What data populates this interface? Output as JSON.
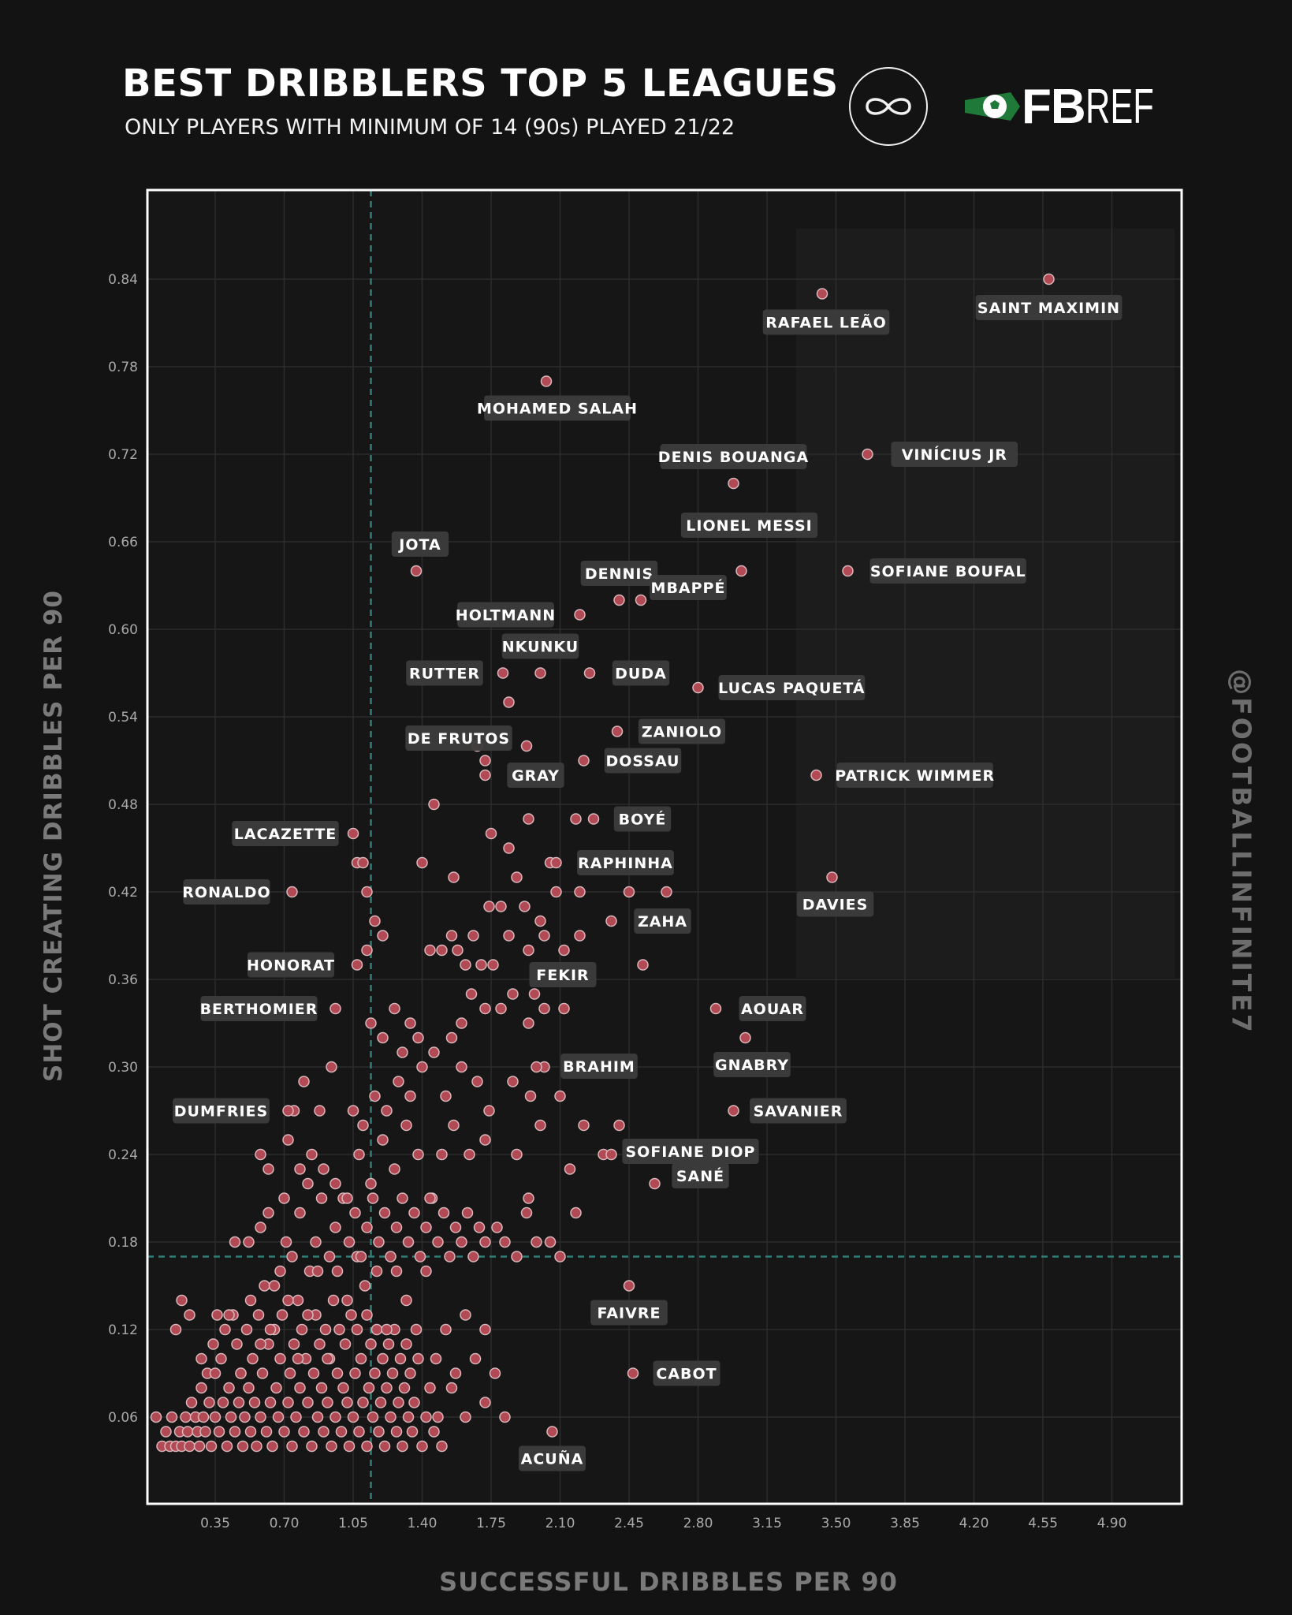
{
  "header": {
    "title": "BEST DRIBBLERS TOP 5 LEAGUES",
    "subtitle": "ONLY PLAYERS WITH MINIMUM OF 14 (90s) PLAYED 21/22",
    "brand_fb": "FB",
    "brand_ref": "REF",
    "handle": "@FOOTBALLINFINITE7"
  },
  "colors": {
    "background": "#131313",
    "plot_bg": "#161616",
    "grid": "#2c2c2c",
    "frame": "#ffffff",
    "avg_line": "#2f7f78",
    "point_fill": "#b24a55",
    "point_stroke": "#d9b7bb",
    "label_bg": "#3c3c3c",
    "fbref_green": "#1f7a3a"
  },
  "chart_data": {
    "type": "scatter",
    "xlabel": "SUCCESSFUL DRIBBLES PER 90",
    "ylabel": "SHOT CREATING DRIBBLES PER 90",
    "xlim": [
      0,
      5.25
    ],
    "ylim": [
      0,
      0.9
    ],
    "xticks": [
      "0.35",
      "0.70",
      "1.05",
      "1.40",
      "1.75",
      "2.10",
      "2.45",
      "2.80",
      "3.15",
      "3.50",
      "3.85",
      "4.20",
      "4.55",
      "4.90"
    ],
    "yticks": [
      "0.06",
      "0.12",
      "0.18",
      "0.24",
      "0.30",
      "0.36",
      "0.42",
      "0.48",
      "0.54",
      "0.60",
      "0.66",
      "0.72",
      "0.78",
      "0.84"
    ],
    "grid": true,
    "reference_lines": {
      "x_mean": 1.14,
      "y_mean": 0.17
    },
    "labeled_points": [
      {
        "name": "SAINT MAXIMIN",
        "x": 4.58,
        "y": 0.84
      },
      {
        "name": "RAFAEL LEÃO",
        "x": 3.43,
        "y": 0.83
      },
      {
        "name": "MOHAMED SALAH",
        "x": 2.03,
        "y": 0.77
      },
      {
        "name": "VINÍCIUS JR",
        "x": 3.66,
        "y": 0.72
      },
      {
        "name": "DENIS BOUANGA",
        "x": 2.98,
        "y": 0.7
      },
      {
        "name": "LIONEL MESSI",
        "x": 3.02,
        "y": 0.64
      },
      {
        "name": "SOFIANE BOUFAL",
        "x": 3.56,
        "y": 0.64
      },
      {
        "name": "JOTA",
        "x": 1.37,
        "y": 0.64
      },
      {
        "name": "DENNIS",
        "x": 2.4,
        "y": 0.62
      },
      {
        "name": "MBAPPÉ",
        "x": 2.51,
        "y": 0.62
      },
      {
        "name": "HOLTMANN",
        "x": 2.2,
        "y": 0.61
      },
      {
        "name": "NKUNKU",
        "x": 2.0,
        "y": 0.57
      },
      {
        "name": "RUTTER",
        "x": 1.81,
        "y": 0.57
      },
      {
        "name": "DUDA",
        "x": 2.25,
        "y": 0.57
      },
      {
        "name": "LUCAS PAQUETÁ",
        "x": 2.8,
        "y": 0.56
      },
      {
        "name": "ZANIOLO",
        "x": 2.39,
        "y": 0.53
      },
      {
        "name": "DE FRUTOS",
        "x": 1.93,
        "y": 0.52
      },
      {
        "name": "DOSSAU",
        "x": 2.22,
        "y": 0.51
      },
      {
        "name": "GRAY",
        "x": 1.72,
        "y": 0.5
      },
      {
        "name": "PATRICK WIMMER",
        "x": 3.4,
        "y": 0.5
      },
      {
        "name": "BOYÉ",
        "x": 2.27,
        "y": 0.47
      },
      {
        "name": "LACAZETTE",
        "x": 1.05,
        "y": 0.46
      },
      {
        "name": "RAPHINHA",
        "x": 2.08,
        "y": 0.44
      },
      {
        "name": "RONALDO",
        "x": 0.74,
        "y": 0.42
      },
      {
        "name": "DAVIES",
        "x": 3.48,
        "y": 0.43
      },
      {
        "name": "ZAHA",
        "x": 2.36,
        "y": 0.4
      },
      {
        "name": "HONORAT",
        "x": 1.07,
        "y": 0.37
      },
      {
        "name": "FEKIR",
        "x": 1.97,
        "y": 0.35
      },
      {
        "name": "BERTHOMIER",
        "x": 0.96,
        "y": 0.34
      },
      {
        "name": "AOUAR",
        "x": 2.89,
        "y": 0.34
      },
      {
        "name": "GNABRY",
        "x": 3.04,
        "y": 0.32
      },
      {
        "name": "BRAHIM",
        "x": 1.98,
        "y": 0.3
      },
      {
        "name": "DUMFRIES",
        "x": 0.72,
        "y": 0.27
      },
      {
        "name": "SAVANIER",
        "x": 2.98,
        "y": 0.27
      },
      {
        "name": "SOFIANE DIOP",
        "x": 2.36,
        "y": 0.24
      },
      {
        "name": "SANÉ",
        "x": 2.58,
        "y": 0.22
      },
      {
        "name": "FAIVRE",
        "x": 2.45,
        "y": 0.15
      },
      {
        "name": "CABOT",
        "x": 2.47,
        "y": 0.09
      },
      {
        "name": "ACUÑA",
        "x": 2.06,
        "y": 0.05
      }
    ],
    "points": [
      [
        0.05,
        0.06
      ],
      [
        0.08,
        0.04
      ],
      [
        0.1,
        0.05
      ],
      [
        0.12,
        0.04
      ],
      [
        0.13,
        0.06
      ],
      [
        0.15,
        0.04
      ],
      [
        0.17,
        0.05
      ],
      [
        0.18,
        0.04
      ],
      [
        0.2,
        0.06
      ],
      [
        0.21,
        0.05
      ],
      [
        0.22,
        0.04
      ],
      [
        0.23,
        0.07
      ],
      [
        0.25,
        0.06
      ],
      [
        0.26,
        0.05
      ],
      [
        0.27,
        0.04
      ],
      [
        0.28,
        0.08
      ],
      [
        0.29,
        0.06
      ],
      [
        0.3,
        0.05
      ],
      [
        0.31,
        0.09
      ],
      [
        0.32,
        0.07
      ],
      [
        0.33,
        0.04
      ],
      [
        0.34,
        0.11
      ],
      [
        0.35,
        0.06
      ],
      [
        0.36,
        0.13
      ],
      [
        0.37,
        0.05
      ],
      [
        0.38,
        0.1
      ],
      [
        0.39,
        0.07
      ],
      [
        0.4,
        0.12
      ],
      [
        0.41,
        0.04
      ],
      [
        0.42,
        0.08
      ],
      [
        0.43,
        0.06
      ],
      [
        0.44,
        0.13
      ],
      [
        0.45,
        0.05
      ],
      [
        0.46,
        0.11
      ],
      [
        0.47,
        0.07
      ],
      [
        0.48,
        0.09
      ],
      [
        0.49,
        0.04
      ],
      [
        0.5,
        0.06
      ],
      [
        0.51,
        0.12
      ],
      [
        0.52,
        0.08
      ],
      [
        0.53,
        0.05
      ],
      [
        0.54,
        0.1
      ],
      [
        0.55,
        0.07
      ],
      [
        0.56,
        0.04
      ],
      [
        0.57,
        0.13
      ],
      [
        0.58,
        0.06
      ],
      [
        0.59,
        0.09
      ],
      [
        0.6,
        0.15
      ],
      [
        0.61,
        0.05
      ],
      [
        0.62,
        0.11
      ],
      [
        0.63,
        0.07
      ],
      [
        0.64,
        0.04
      ],
      [
        0.65,
        0.12
      ],
      [
        0.66,
        0.08
      ],
      [
        0.67,
        0.06
      ],
      [
        0.68,
        0.1
      ],
      [
        0.69,
        0.13
      ],
      [
        0.7,
        0.05
      ],
      [
        0.71,
        0.18
      ],
      [
        0.72,
        0.07
      ],
      [
        0.73,
        0.09
      ],
      [
        0.74,
        0.04
      ],
      [
        0.75,
        0.11
      ],
      [
        0.76,
        0.06
      ],
      [
        0.77,
        0.14
      ],
      [
        0.78,
        0.08
      ],
      [
        0.79,
        0.12
      ],
      [
        0.8,
        0.05
      ],
      [
        0.81,
        0.1
      ],
      [
        0.82,
        0.07
      ],
      [
        0.83,
        0.16
      ],
      [
        0.84,
        0.04
      ],
      [
        0.85,
        0.09
      ],
      [
        0.86,
        0.13
      ],
      [
        0.87,
        0.06
      ],
      [
        0.88,
        0.11
      ],
      [
        0.89,
        0.08
      ],
      [
        0.9,
        0.05
      ],
      [
        0.91,
        0.12
      ],
      [
        0.92,
        0.07
      ],
      [
        0.93,
        0.1
      ],
      [
        0.94,
        0.04
      ],
      [
        0.95,
        0.14
      ],
      [
        0.96,
        0.06
      ],
      [
        0.97,
        0.09
      ],
      [
        0.98,
        0.12
      ],
      [
        0.99,
        0.05
      ],
      [
        1.0,
        0.08
      ],
      [
        1.01,
        0.11
      ],
      [
        1.02,
        0.07
      ],
      [
        1.03,
        0.04
      ],
      [
        1.04,
        0.13
      ],
      [
        1.05,
        0.06
      ],
      [
        1.06,
        0.09
      ],
      [
        1.07,
        0.12
      ],
      [
        1.08,
        0.05
      ],
      [
        1.09,
        0.1
      ],
      [
        1.1,
        0.07
      ],
      [
        1.11,
        0.15
      ],
      [
        1.12,
        0.04
      ],
      [
        1.13,
        0.08
      ],
      [
        1.14,
        0.11
      ],
      [
        1.15,
        0.06
      ],
      [
        1.16,
        0.09
      ],
      [
        1.17,
        0.12
      ],
      [
        1.18,
        0.05
      ],
      [
        1.19,
        0.07
      ],
      [
        1.2,
        0.1
      ],
      [
        1.21,
        0.04
      ],
      [
        1.22,
        0.08
      ],
      [
        1.23,
        0.11
      ],
      [
        1.24,
        0.06
      ],
      [
        1.25,
        0.09
      ],
      [
        1.26,
        0.12
      ],
      [
        1.27,
        0.05
      ],
      [
        1.28,
        0.07
      ],
      [
        1.29,
        0.1
      ],
      [
        1.3,
        0.04
      ],
      [
        1.31,
        0.08
      ],
      [
        1.32,
        0.11
      ],
      [
        1.33,
        0.06
      ],
      [
        1.34,
        0.09
      ],
      [
        1.35,
        0.05
      ],
      [
        1.36,
        0.07
      ],
      [
        1.38,
        0.1
      ],
      [
        1.4,
        0.04
      ],
      [
        1.42,
        0.06
      ],
      [
        1.44,
        0.08
      ],
      [
        1.46,
        0.05
      ],
      [
        1.48,
        0.06
      ],
      [
        1.5,
        0.04
      ],
      [
        0.15,
        0.12
      ],
      [
        0.22,
        0.13
      ],
      [
        0.28,
        0.1
      ],
      [
        0.35,
        0.09
      ],
      [
        0.42,
        0.13
      ],
      [
        0.48,
        0.09
      ],
      [
        0.53,
        0.14
      ],
      [
        0.58,
        0.11
      ],
      [
        0.63,
        0.12
      ],
      [
        0.68,
        0.16
      ],
      [
        0.72,
        0.14
      ],
      [
        0.77,
        0.1
      ],
      [
        0.82,
        0.13
      ],
      [
        0.87,
        0.16
      ],
      [
        0.92,
        0.1
      ],
      [
        0.97,
        0.16
      ],
      [
        1.02,
        0.14
      ],
      [
        1.07,
        0.17
      ],
      [
        1.12,
        0.13
      ],
      [
        1.17,
        0.16
      ],
      [
        1.22,
        0.12
      ],
      [
        1.27,
        0.16
      ],
      [
        1.32,
        0.14
      ],
      [
        1.37,
        0.12
      ],
      [
        1.42,
        0.16
      ],
      [
        1.47,
        0.1
      ],
      [
        1.52,
        0.12
      ],
      [
        1.57,
        0.09
      ],
      [
        1.62,
        0.13
      ],
      [
        1.67,
        0.1
      ],
      [
        1.72,
        0.12
      ],
      [
        1.77,
        0.09
      ],
      [
        1.62,
        0.06
      ],
      [
        1.72,
        0.07
      ],
      [
        1.82,
        0.06
      ],
      [
        1.55,
        0.08
      ],
      [
        0.18,
        0.14
      ],
      [
        0.45,
        0.18
      ],
      [
        0.52,
        0.18
      ],
      [
        0.58,
        0.19
      ],
      [
        0.62,
        0.2
      ],
      [
        0.65,
        0.15
      ],
      [
        0.7,
        0.21
      ],
      [
        0.74,
        0.17
      ],
      [
        0.78,
        0.2
      ],
      [
        0.82,
        0.22
      ],
      [
        0.86,
        0.18
      ],
      [
        0.89,
        0.21
      ],
      [
        0.93,
        0.17
      ],
      [
        0.96,
        0.19
      ],
      [
        1.0,
        0.21
      ],
      [
        1.03,
        0.18
      ],
      [
        1.06,
        0.2
      ],
      [
        1.09,
        0.17
      ],
      [
        1.12,
        0.19
      ],
      [
        1.15,
        0.21
      ],
      [
        1.18,
        0.18
      ],
      [
        1.21,
        0.2
      ],
      [
        1.24,
        0.17
      ],
      [
        1.27,
        0.19
      ],
      [
        1.3,
        0.21
      ],
      [
        1.33,
        0.18
      ],
      [
        1.36,
        0.2
      ],
      [
        1.39,
        0.17
      ],
      [
        1.42,
        0.19
      ],
      [
        1.45,
        0.21
      ],
      [
        1.48,
        0.18
      ],
      [
        1.51,
        0.2
      ],
      [
        1.54,
        0.17
      ],
      [
        1.57,
        0.19
      ],
      [
        1.6,
        0.18
      ],
      [
        1.63,
        0.2
      ],
      [
        1.66,
        0.17
      ],
      [
        1.69,
        0.19
      ],
      [
        1.72,
        0.18
      ],
      [
        1.78,
        0.19
      ],
      [
        1.82,
        0.18
      ],
      [
        1.88,
        0.17
      ],
      [
        1.93,
        0.2
      ],
      [
        1.98,
        0.18
      ],
      [
        2.05,
        0.18
      ],
      [
        2.1,
        0.17
      ],
      [
        2.18,
        0.2
      ],
      [
        0.58,
        0.24
      ],
      [
        0.62,
        0.23
      ],
      [
        0.72,
        0.25
      ],
      [
        0.78,
        0.23
      ],
      [
        0.84,
        0.24
      ],
      [
        0.9,
        0.23
      ],
      [
        0.96,
        0.22
      ],
      [
        1.02,
        0.21
      ],
      [
        1.08,
        0.24
      ],
      [
        1.14,
        0.22
      ],
      [
        1.2,
        0.25
      ],
      [
        1.26,
        0.23
      ],
      [
        1.32,
        0.26
      ],
      [
        1.38,
        0.24
      ],
      [
        1.44,
        0.21
      ],
      [
        1.5,
        0.24
      ],
      [
        1.56,
        0.26
      ],
      [
        1.64,
        0.24
      ],
      [
        1.72,
        0.25
      ],
      [
        1.88,
        0.24
      ],
      [
        1.94,
        0.21
      ],
      [
        2.0,
        0.26
      ],
      [
        2.15,
        0.23
      ],
      [
        2.22,
        0.26
      ],
      [
        2.32,
        0.24
      ],
      [
        2.4,
        0.26
      ],
      [
        0.75,
        0.27
      ],
      [
        0.8,
        0.29
      ],
      [
        0.88,
        0.27
      ],
      [
        0.94,
        0.3
      ],
      [
        1.05,
        0.27
      ],
      [
        1.1,
        0.26
      ],
      [
        1.16,
        0.28
      ],
      [
        1.22,
        0.27
      ],
      [
        1.28,
        0.29
      ],
      [
        1.34,
        0.28
      ],
      [
        1.4,
        0.3
      ],
      [
        1.46,
        0.31
      ],
      [
        1.52,
        0.28
      ],
      [
        1.6,
        0.3
      ],
      [
        1.68,
        0.29
      ],
      [
        1.74,
        0.27
      ],
      [
        1.86,
        0.29
      ],
      [
        1.95,
        0.28
      ],
      [
        2.02,
        0.3
      ],
      [
        2.1,
        0.28
      ],
      [
        1.14,
        0.33
      ],
      [
        1.2,
        0.32
      ],
      [
        1.26,
        0.34
      ],
      [
        1.3,
        0.31
      ],
      [
        1.34,
        0.33
      ],
      [
        1.38,
        0.32
      ],
      [
        1.55,
        0.32
      ],
      [
        1.6,
        0.33
      ],
      [
        1.65,
        0.35
      ],
      [
        1.72,
        0.34
      ],
      [
        1.8,
        0.34
      ],
      [
        1.86,
        0.35
      ],
      [
        1.94,
        0.33
      ],
      [
        2.02,
        0.34
      ],
      [
        2.12,
        0.34
      ],
      [
        1.12,
        0.38
      ],
      [
        1.16,
        0.4
      ],
      [
        1.2,
        0.39
      ],
      [
        1.44,
        0.38
      ],
      [
        1.5,
        0.38
      ],
      [
        1.55,
        0.39
      ],
      [
        1.58,
        0.38
      ],
      [
        1.62,
        0.37
      ],
      [
        1.66,
        0.39
      ],
      [
        1.7,
        0.37
      ],
      [
        1.76,
        0.37
      ],
      [
        1.84,
        0.39
      ],
      [
        1.94,
        0.38
      ],
      [
        2.02,
        0.39
      ],
      [
        2.12,
        0.38
      ],
      [
        2.2,
        0.39
      ],
      [
        2.52,
        0.37
      ],
      [
        1.07,
        0.44
      ],
      [
        1.1,
        0.44
      ],
      [
        1.12,
        0.42
      ],
      [
        1.4,
        0.44
      ],
      [
        1.56,
        0.43
      ],
      [
        1.74,
        0.41
      ],
      [
        1.8,
        0.41
      ],
      [
        1.84,
        0.45
      ],
      [
        1.88,
        0.43
      ],
      [
        1.92,
        0.41
      ],
      [
        2.0,
        0.4
      ],
      [
        2.08,
        0.42
      ],
      [
        2.2,
        0.42
      ],
      [
        2.45,
        0.42
      ],
      [
        2.64,
        0.42
      ],
      [
        1.46,
        0.48
      ],
      [
        1.72,
        0.51
      ],
      [
        1.84,
        0.55
      ],
      [
        1.94,
        0.47
      ],
      [
        2.18,
        0.47
      ],
      [
        1.68,
        0.52
      ],
      [
        2.05,
        0.44
      ],
      [
        1.75,
        0.46
      ]
    ]
  }
}
